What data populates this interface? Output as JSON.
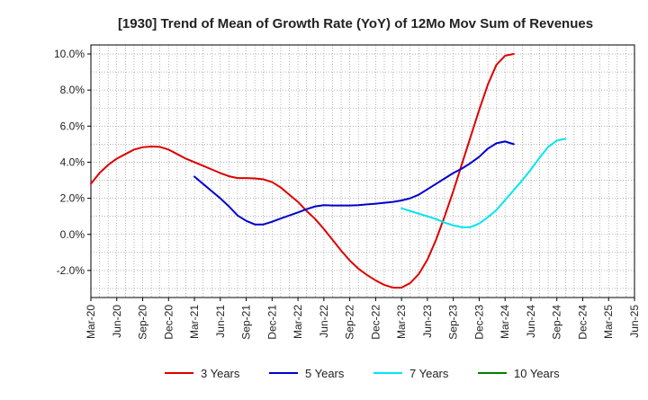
{
  "chart_data": {
    "type": "line",
    "title": "[1930]  Trend of Mean of Growth Rate (YoY) of 12Mo Mov Sum of Revenues",
    "xlabel": "",
    "ylabel": "",
    "ylim": [
      -3.5,
      10.5
    ],
    "yticks": [
      -2.0,
      0.0,
      2.0,
      4.0,
      6.0,
      8.0,
      10.0
    ],
    "ytick_labels": [
      "-2.0%",
      "0.0%",
      "2.0%",
      "4.0%",
      "6.0%",
      "8.0%",
      "10.0%"
    ],
    "xtick_labels": [
      "Mar-20",
      "Jun-20",
      "Sep-20",
      "Dec-20",
      "Mar-21",
      "Jun-21",
      "Sep-21",
      "Dec-21",
      "Mar-22",
      "Jun-22",
      "Sep-22",
      "Dec-22",
      "Mar-23",
      "Jun-23",
      "Sep-23",
      "Dec-23",
      "Mar-24",
      "Jun-24",
      "Sep-24",
      "Dec-24",
      "Mar-25",
      "Jun-25"
    ],
    "grid": true,
    "legend_position": "bottom",
    "series": [
      {
        "name": "3 Years",
        "color": "#dd0000",
        "start_index": 0,
        "values": [
          2.8,
          3.4,
          3.85,
          4.2,
          4.45,
          4.7,
          4.83,
          4.87,
          4.85,
          4.7,
          4.45,
          4.2,
          4.0,
          3.8,
          3.6,
          3.4,
          3.22,
          3.12,
          3.12,
          3.1,
          3.05,
          2.9,
          2.6,
          2.2,
          1.8,
          1.3,
          0.85,
          0.3,
          -0.3,
          -0.9,
          -1.45,
          -1.9,
          -2.25,
          -2.55,
          -2.8,
          -2.95,
          -2.95,
          -2.7,
          -2.2,
          -1.4,
          -0.3,
          1.0,
          2.4,
          3.9,
          5.4,
          6.9,
          8.3,
          9.4,
          9.9,
          10.0
        ]
      },
      {
        "name": "5 Years",
        "color": "#0000cc",
        "start_index": 12,
        "values": [
          3.2,
          2.8,
          2.4,
          2.0,
          1.55,
          1.05,
          0.75,
          0.55,
          0.55,
          0.7,
          0.88,
          1.05,
          1.22,
          1.4,
          1.55,
          1.62,
          1.6,
          1.6,
          1.6,
          1.62,
          1.66,
          1.7,
          1.75,
          1.8,
          1.88,
          2.0,
          2.2,
          2.5,
          2.8,
          3.1,
          3.4,
          3.65,
          3.95,
          4.3,
          4.75,
          5.05,
          5.15,
          5.0
        ]
      },
      {
        "name": "7 Years",
        "color": "#00e5ee",
        "start_index": 36,
        "values": [
          1.45,
          1.3,
          1.15,
          1.0,
          0.85,
          0.65,
          0.5,
          0.4,
          0.4,
          0.6,
          0.95,
          1.35,
          1.9,
          2.45,
          3.0,
          3.6,
          4.25,
          4.85,
          5.2,
          5.3
        ]
      },
      {
        "name": "10 Years",
        "color": "#008000",
        "start_index": 0,
        "values": []
      }
    ]
  }
}
